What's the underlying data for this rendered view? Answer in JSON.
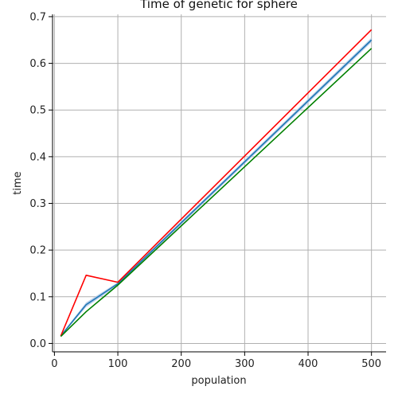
{
  "chart_data": {
    "type": "line",
    "title": "Time of genetic for sphere",
    "xlabel": "population",
    "ylabel": "time",
    "xlim": [
      -3,
      523
    ],
    "ylim": [
      -0.018,
      0.705
    ],
    "x_ticks": [
      0,
      100,
      200,
      300,
      400,
      500
    ],
    "x_tick_labels": [
      "0",
      "100",
      "200",
      "300",
      "400",
      "500"
    ],
    "y_ticks": [
      0.0,
      0.1,
      0.2,
      0.3,
      0.4,
      0.5,
      0.6,
      0.7
    ],
    "y_tick_labels": [
      "0.0",
      "0.1",
      "0.2",
      "0.3",
      "0.4",
      "0.5",
      "0.6",
      "0.7"
    ],
    "grid": true,
    "x": [
      10,
      50,
      100,
      500
    ],
    "band": {
      "color": "#aec7e8",
      "lower": [
        0.015,
        0.078,
        0.124,
        0.645
      ],
      "upper": [
        0.018,
        0.088,
        0.131,
        0.655
      ]
    },
    "series": [
      {
        "color": "#1f77b4",
        "values": [
          0.016,
          0.083,
          0.128,
          0.65
        ]
      },
      {
        "color": "#ff0000",
        "values": [
          0.016,
          0.146,
          0.131,
          0.672
        ]
      },
      {
        "color": "#008000",
        "values": [
          0.015,
          0.068,
          0.125,
          0.632
        ]
      }
    ]
  }
}
